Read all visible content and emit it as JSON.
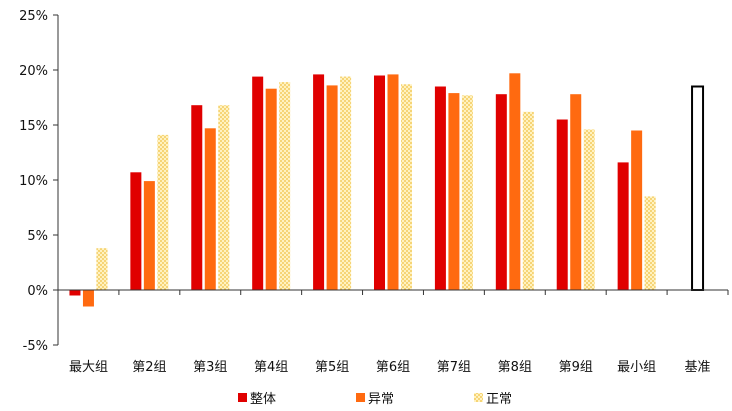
{
  "chart_data": {
    "type": "bar",
    "categories": [
      "最大组",
      "第2组",
      "第3组",
      "第4组",
      "第5组",
      "第6组",
      "第7组",
      "第8组",
      "第9组",
      "最小组",
      "基准"
    ],
    "series": [
      {
        "name": "整体",
        "color": "#e00000",
        "values": [
          -0.5,
          10.7,
          16.8,
          19.4,
          19.6,
          19.5,
          18.5,
          17.8,
          15.5,
          11.6,
          null
        ]
      },
      {
        "name": "异常",
        "color": "#ff6a10",
        "values": [
          -1.5,
          9.9,
          14.7,
          18.3,
          18.6,
          19.6,
          17.9,
          19.7,
          17.8,
          14.5,
          null
        ]
      },
      {
        "name": "正常",
        "color": "#ffe48a",
        "pattern": "dotted",
        "values": [
          3.8,
          14.1,
          16.8,
          18.9,
          19.4,
          18.7,
          17.7,
          16.2,
          14.6,
          8.5,
          null
        ]
      }
    ],
    "benchmark": {
      "category": "基准",
      "value": 18.5
    },
    "y_ticks": [
      "25%",
      "20%",
      "15%",
      "10%",
      "5%",
      "0%",
      "-5%"
    ],
    "ylim": [
      -5,
      25
    ],
    "unit": "%",
    "legend_position": "bottom",
    "grid": false
  }
}
